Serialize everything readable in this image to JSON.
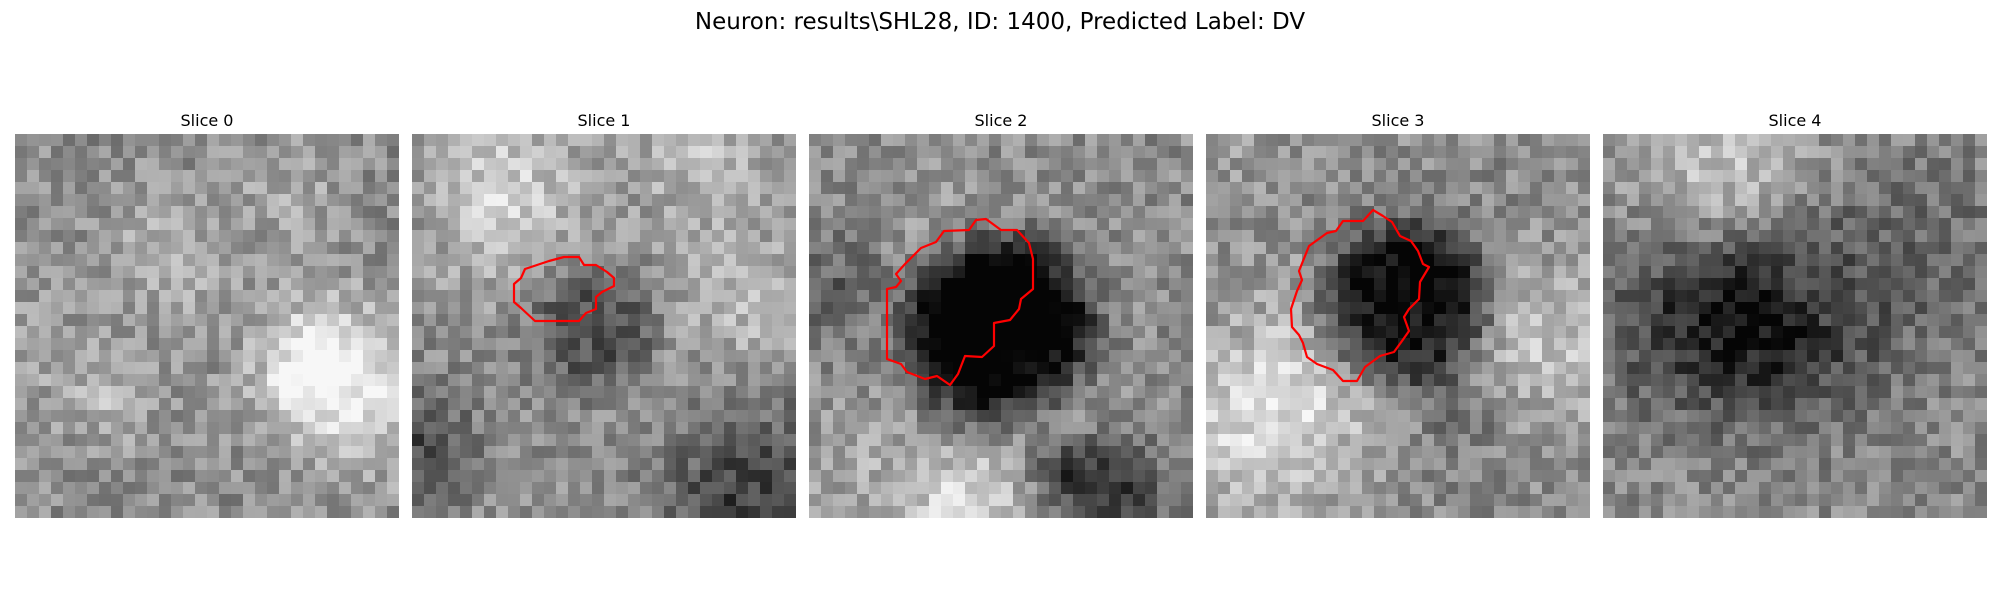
{
  "figure": {
    "title": "Neuron: results\\SHL28, ID: 1400, Predicted Label: DV"
  },
  "panels": [
    {
      "title": "Slice 0",
      "seed": 11,
      "dark_center": null,
      "contour": false
    },
    {
      "title": "Slice 1",
      "seed": 23,
      "dark_center": [
        0.47,
        0.5,
        0.17,
        0.25
      ],
      "contour": true
    },
    {
      "title": "Slice 2",
      "seed": 37,
      "dark_center": [
        0.5,
        0.52,
        0.24,
        0.8
      ],
      "contour": true
    },
    {
      "title": "Slice 3",
      "seed": 41,
      "dark_center": [
        0.52,
        0.45,
        0.22,
        0.65
      ],
      "contour": true
    },
    {
      "title": "Slice 4",
      "seed": 59,
      "dark_center": null,
      "contour": false
    }
  ],
  "style": {
    "contour_color": "#ff0000"
  }
}
